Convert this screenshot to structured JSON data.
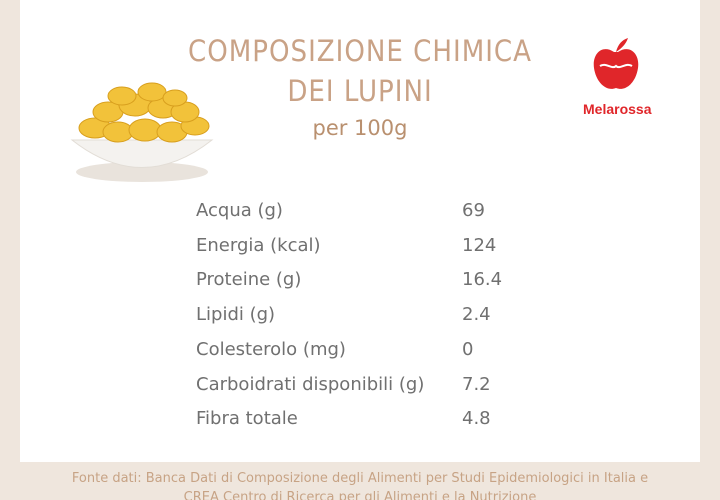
{
  "header": {
    "title_lines": [
      "COMPOSIZIONE CHIMICA",
      "DEI LUPINI"
    ],
    "subtitle": "per 100g"
  },
  "logo": {
    "brand": "Melarossa"
  },
  "table": {
    "rows": [
      [
        "Acqua (g)",
        "69"
      ],
      [
        "Energia (kcal)",
        "124"
      ],
      [
        "Proteine (g)",
        "16.4"
      ],
      [
        "Lipidi (g)",
        "2.4"
      ],
      [
        "Colesterolo (mg)",
        "0"
      ],
      [
        "Carboidrati disponibili (g)",
        "7.2"
      ],
      [
        "Fibra totale",
        "4.8"
      ]
    ]
  },
  "footer": {
    "lines": [
      "Fonte dati: Banca Dati di Composizione degli Alimenti per Studi Epidemiologici in Italia e",
      "CREA Centro di Ricerca per gli Alimenti e la Nutrizione"
    ]
  }
}
